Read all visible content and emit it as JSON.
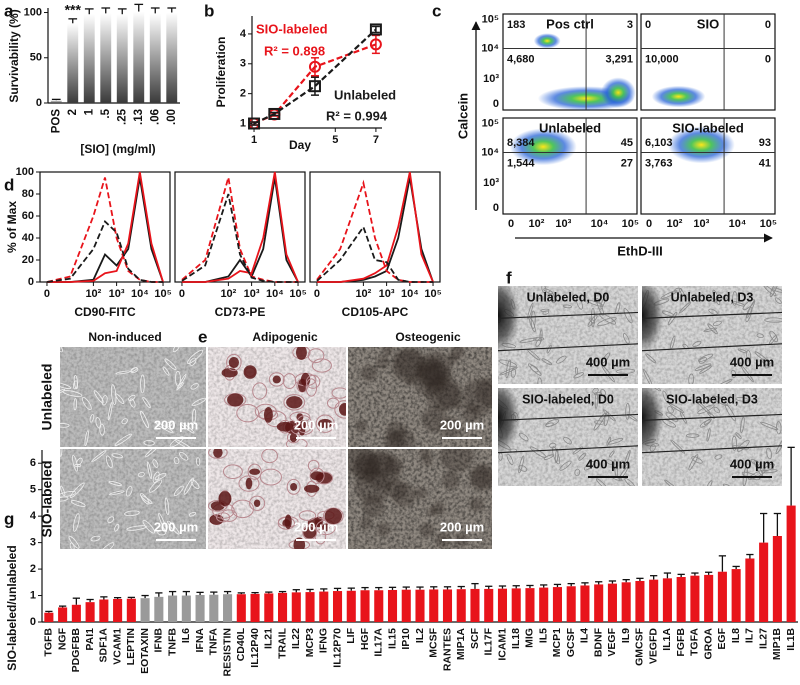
{
  "chart_data": [
    {
      "panel": "a",
      "type": "bar",
      "y_label": "Survivability (%)",
      "x_label": "[SIO] (mg/ml)",
      "annotation": "***",
      "color": "#3a3a3a",
      "gradient": true,
      "categories": [
        "POS",
        "2",
        "1",
        ".5",
        ".25",
        ".13",
        ".06",
        ".00"
      ],
      "values": [
        3,
        88,
        98,
        99,
        98,
        101,
        99,
        100
      ],
      "errors": [
        1,
        5,
        6,
        6,
        6,
        8,
        6,
        5
      ],
      "ylim": [
        0,
        105
      ],
      "yticks": [
        0,
        50,
        100
      ]
    },
    {
      "panel": "b",
      "type": "line",
      "y_label": "Proliferation",
      "x_label": "Day",
      "x": [
        1,
        2,
        4,
        7
      ],
      "xlim": [
        0.9,
        7.3
      ],
      "xticks": [
        1,
        5,
        7
      ],
      "ylim": [
        0.85,
        4.6
      ],
      "yticks": [
        1,
        2,
        3,
        4
      ],
      "series": [
        {
          "name": "SIO-labeled",
          "r2": "R² = 0.898",
          "color": "#e8141b",
          "marker": "circle",
          "dash": true,
          "values": [
            1,
            1.3,
            2.9,
            3.65
          ],
          "errors": [
            0.05,
            0.05,
            0.3,
            0.3
          ]
        },
        {
          "name": "Unlabeled",
          "r2": "R² = 0.994",
          "color": "#1a1a1a",
          "marker": "square",
          "dash": true,
          "values": [
            1,
            1.32,
            2.25,
            4.15
          ],
          "errors": [
            0.05,
            0.05,
            0.3,
            0.1
          ]
        }
      ]
    },
    {
      "panel": "d",
      "type": "line",
      "y_label": "% of Max",
      "x_label": "CD90-FITC",
      "x": [
        0,
        1,
        2,
        2.5,
        3,
        3.5,
        4,
        4.5,
        5
      ],
      "xlim": [
        -0.3,
        5.3
      ],
      "xticks": [
        0,
        {
          "value": 2,
          "label": "10²"
        },
        {
          "value": 3,
          "label": "10³"
        },
        {
          "value": 4,
          "label": "10⁴"
        },
        {
          "value": 5,
          "label": "10⁵"
        }
      ],
      "ylim": [
        0,
        100
      ],
      "yticks": [
        0,
        20,
        40,
        60,
        80,
        100
      ],
      "series": [
        {
          "color": "#1a1a1a",
          "dash": false,
          "values": [
            0,
            0,
            2,
            25,
            15,
            30,
            95,
            30,
            0
          ]
        },
        {
          "color": "#e8141b",
          "dash": false,
          "values": [
            0,
            0,
            1,
            8,
            10,
            35,
            100,
            35,
            0
          ]
        },
        {
          "color": "#e8141b",
          "dash": true,
          "values": [
            0,
            5,
            60,
            95,
            40,
            10,
            2,
            0,
            0
          ]
        },
        {
          "color": "#1a1a1a",
          "dash": true,
          "values": [
            0,
            3,
            30,
            55,
            45,
            12,
            2,
            0,
            0
          ]
        }
      ]
    },
    {
      "type": "line",
      "x_label": "CD73-PE",
      "x": [
        0,
        1,
        2,
        2.5,
        3,
        3.5,
        4,
        4.5,
        5
      ],
      "xlim": [
        -0.3,
        5.3
      ],
      "xticks": [
        0,
        {
          "value": 2,
          "label": "10²"
        },
        {
          "value": 3,
          "label": "10³"
        },
        {
          "value": 4,
          "label": "10⁴"
        },
        {
          "value": 5,
          "label": "10⁵"
        }
      ],
      "ylim": [
        0,
        100
      ],
      "series": [
        {
          "color": "#1a1a1a",
          "dash": false,
          "values": [
            0,
            0,
            5,
            20,
            5,
            30,
            95,
            20,
            0
          ]
        },
        {
          "color": "#e8141b",
          "dash": false,
          "values": [
            0,
            0,
            3,
            10,
            8,
            40,
            100,
            25,
            0
          ]
        },
        {
          "color": "#e8141b",
          "dash": true,
          "values": [
            2,
            20,
            95,
            30,
            5,
            2,
            0,
            0,
            0
          ]
        },
        {
          "color": "#1a1a1a",
          "dash": true,
          "values": [
            1,
            15,
            80,
            25,
            4,
            1,
            0,
            0,
            0
          ]
        }
      ]
    },
    {
      "type": "line",
      "x_label": "CD105-APC",
      "x": [
        0,
        1,
        2,
        2.5,
        3,
        3.5,
        4,
        4.5,
        5
      ],
      "xlim": [
        -0.3,
        5.3
      ],
      "xticks": [
        0,
        {
          "value": 2,
          "label": "10²"
        },
        {
          "value": 3,
          "label": "10³"
        },
        {
          "value": 4,
          "label": "10⁴"
        },
        {
          "value": 5,
          "label": "10⁵"
        }
      ],
      "ylim": [
        0,
        100
      ],
      "series": [
        {
          "color": "#1a1a1a",
          "dash": false,
          "values": [
            0,
            0,
            2,
            5,
            10,
            40,
            95,
            30,
            0
          ]
        },
        {
          "color": "#e8141b",
          "dash": false,
          "values": [
            0,
            0,
            3,
            8,
            15,
            50,
            100,
            25,
            0
          ]
        },
        {
          "color": "#e8141b",
          "dash": true,
          "values": [
            2,
            30,
            90,
            40,
            10,
            2,
            0,
            0,
            0
          ]
        },
        {
          "color": "#1a1a1a",
          "dash": true,
          "values": [
            1,
            20,
            50,
            20,
            18,
            2,
            0,
            0,
            0
          ]
        }
      ]
    },
    {
      "panel": "g",
      "type": "bar",
      "y_label": "SIO-labeled/unlabeled",
      "categories": [
        "TGFB",
        "NGF",
        "PDGFBB",
        "PAI1",
        "SDF1A",
        "VCAM1",
        "LEPTIN",
        "EOTAXIN",
        "IFNB",
        "TNFB",
        "IL6",
        "IFNA",
        "TNFA",
        "RESISTIN",
        "CD40L",
        "IL12P40",
        "IL21",
        "TRAIL",
        "IL22",
        "MCP3",
        "IFNG",
        "IL12P70",
        "LIF",
        "HGF",
        "IL17A",
        "IL15",
        "IP10",
        "IL2",
        "MCSF",
        "RANTES",
        "MIP1A",
        "SCF",
        "IL17F",
        "ICAM1",
        "IL18",
        "MIG",
        "IL5",
        "MCP1",
        "GCSF",
        "IL4",
        "BDNF",
        "VEGF",
        "IL9",
        "GMCSF",
        "VEGFD",
        "IL1A",
        "FGFB",
        "TGFA",
        "GROA",
        "EGF",
        "IL8",
        "IL7",
        "IL27",
        "MIP1B",
        "IL1B"
      ],
      "values": [
        0.35,
        0.55,
        0.65,
        0.75,
        0.85,
        0.87,
        0.88,
        0.9,
        0.95,
        1.0,
        1.0,
        1.02,
        1.03,
        1.05,
        1.05,
        1.06,
        1.08,
        1.1,
        1.12,
        1.13,
        1.15,
        1.17,
        1.18,
        1.2,
        1.2,
        1.21,
        1.22,
        1.22,
        1.23,
        1.23,
        1.24,
        1.25,
        1.25,
        1.26,
        1.27,
        1.28,
        1.3,
        1.32,
        1.35,
        1.38,
        1.42,
        1.45,
        1.5,
        1.55,
        1.6,
        1.65,
        1.7,
        1.75,
        1.78,
        1.9,
        2.0,
        2.4,
        3.0,
        3.25,
        4.4
      ],
      "errors": [
        0.05,
        0.05,
        0.25,
        0.1,
        0.1,
        0.05,
        0.05,
        0.1,
        0.15,
        0.15,
        0.15,
        0.1,
        0.1,
        0.1,
        0.05,
        0.05,
        0.05,
        0.05,
        0.1,
        0.1,
        0.1,
        0.1,
        0.1,
        0.1,
        0.1,
        0.1,
        0.1,
        0.1,
        0.1,
        0.1,
        0.1,
        0.2,
        0.1,
        0.1,
        0.1,
        0.1,
        0.1,
        0.1,
        0.1,
        0.1,
        0.1,
        0.1,
        0.1,
        0.1,
        0.15,
        0.2,
        0.1,
        0.1,
        0.1,
        0.6,
        0.1,
        0.15,
        1.1,
        0.85,
        2.2
      ],
      "colors": [
        "#e8141b",
        "#e8141b",
        "#e8141b",
        "#e8141b",
        "#e8141b",
        "#e8141b",
        "#e8141b",
        "#9a9a9a",
        "#9a9a9a",
        "#9a9a9a",
        "#9a9a9a",
        "#9a9a9a",
        "#9a9a9a",
        "#9a9a9a",
        "#e8141b",
        "#e8141b",
        "#e8141b",
        "#e8141b",
        "#e8141b",
        "#e8141b",
        "#e8141b",
        "#e8141b",
        "#e8141b",
        "#e8141b",
        "#e8141b",
        "#e8141b",
        "#e8141b",
        "#e8141b",
        "#e8141b",
        "#e8141b",
        "#e8141b",
        "#e8141b",
        "#e8141b",
        "#e8141b",
        "#e8141b",
        "#e8141b",
        "#e8141b",
        "#e8141b",
        "#e8141b",
        "#e8141b",
        "#e8141b",
        "#e8141b",
        "#e8141b",
        "#e8141b",
        "#e8141b",
        "#e8141b",
        "#e8141b",
        "#e8141b",
        "#e8141b",
        "#e8141b",
        "#e8141b",
        "#e8141b",
        "#e8141b",
        "#e8141b",
        "#e8141b"
      ],
      "ylim": [
        0,
        6.5
      ],
      "yticks": [
        0,
        1,
        2,
        3,
        4,
        5,
        6
      ]
    }
  ],
  "flow_cytometry": {
    "panel": "c",
    "y_label": "Calcein",
    "x_label": "EthD-III",
    "y_ticks": [
      "10⁵",
      "10⁴",
      "10³",
      "0"
    ],
    "x_ticks": [
      "0",
      "10²",
      "10³",
      "10⁴",
      "10⁵"
    ],
    "plots": [
      {
        "title": "Pos ctrl",
        "ul": "183",
        "ur": "3",
        "ll": "4,680",
        "lr": "3,291"
      },
      {
        "title": "SIO",
        "ul": "0",
        "ur": "0",
        "ll": "10,000",
        "lr": "0"
      },
      {
        "title": "Unlabeled",
        "ul": "8,384",
        "ur": "45",
        "ll": "1,544",
        "lr": "27"
      },
      {
        "title": "SIO-labeled",
        "ul": "6,103",
        "ur": "93",
        "ll": "3,763",
        "lr": "41"
      }
    ]
  },
  "images": {
    "e": {
      "panel": "e",
      "columns": [
        "Non-induced",
        "Adipogenic",
        "Osteogenic"
      ],
      "rows": [
        "Unlabeled",
        "SIO-labeled"
      ],
      "scale_bar": "200 µm"
    },
    "f": {
      "panel": "f",
      "labels": [
        "Unlabeled, D0",
        "Unlabeled, D3",
        "SIO-labeled, D0",
        "SIO-labeled, D3"
      ],
      "scale_bar": "400 µm"
    }
  }
}
